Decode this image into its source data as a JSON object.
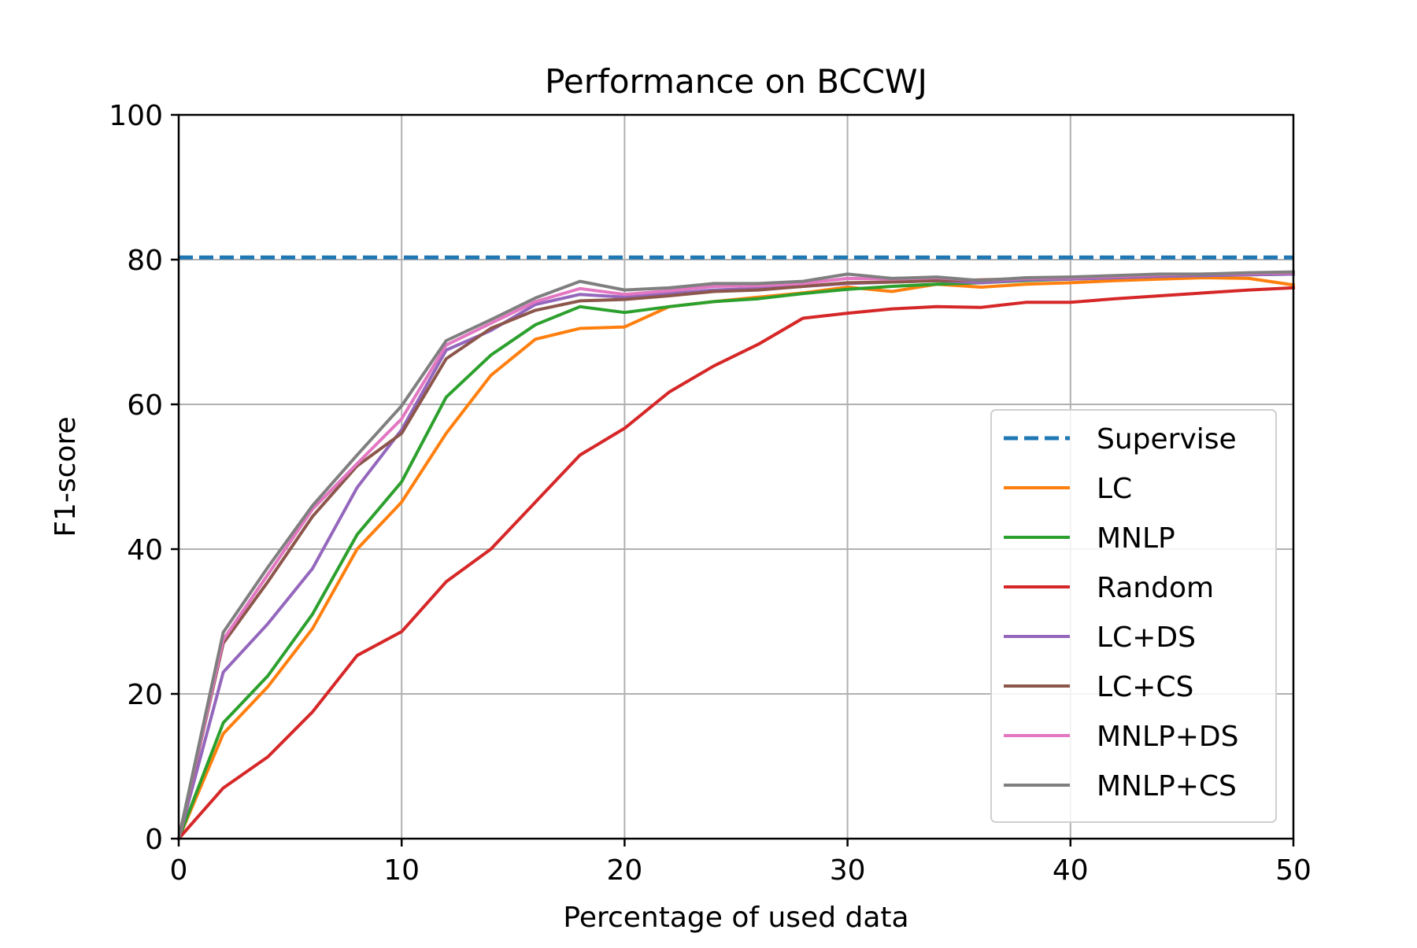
{
  "chart_data": {
    "type": "line",
    "title": "Performance on BCCWJ",
    "xlabel": "Percentage of used data",
    "ylabel": "F1-score",
    "xlim": [
      0,
      50
    ],
    "ylim": [
      0,
      100
    ],
    "xticks": [
      0,
      10,
      20,
      30,
      40,
      50
    ],
    "yticks": [
      0,
      20,
      40,
      60,
      80,
      100
    ],
    "grid": true,
    "legend_position": "center-right / lower-right",
    "x": [
      0,
      2,
      4,
      6,
      8,
      10,
      12,
      14,
      16,
      18,
      20,
      22,
      24,
      26,
      28,
      30,
      32,
      34,
      36,
      38,
      40,
      42,
      44,
      46,
      48,
      50
    ],
    "series": [
      {
        "name": "Supervise",
        "color": "#1f77b4",
        "style": "dashed",
        "constant": 80.3
      },
      {
        "name": "LC",
        "color": "#ff7f0e",
        "style": "solid",
        "values": [
          0,
          14.5,
          21,
          29,
          40,
          46.5,
          56,
          64,
          69,
          70.5,
          70.7,
          73.5,
          74.2,
          74.8,
          75.4,
          76.2,
          75.6,
          76.6,
          76.2,
          76.6,
          76.8,
          77.1,
          77.3,
          77.5,
          77.4,
          76.5
        ]
      },
      {
        "name": "MNLP",
        "color": "#2ca02c",
        "style": "solid",
        "values": [
          0,
          16,
          22.5,
          31,
          42,
          49.3,
          61,
          66.8,
          71,
          73.5,
          72.7,
          73.5,
          74.2,
          74.6,
          75.3,
          75.9,
          76.3,
          76.6,
          76.8,
          77.1,
          77.3,
          77.5,
          77.7,
          77.8,
          77.9,
          78
        ]
      },
      {
        "name": "Random",
        "color": "#d62728",
        "style": "solid",
        "values": [
          0,
          7,
          11.3,
          17.5,
          25.3,
          28.6,
          35.5,
          40,
          46.5,
          53,
          56.7,
          61.7,
          65.3,
          68.3,
          71.9,
          72.6,
          73.2,
          73.5,
          73.4,
          74.1,
          74.1,
          74.6,
          75,
          75.4,
          75.8,
          76.1
        ]
      },
      {
        "name": "LC+DS",
        "color": "#9467bd",
        "style": "solid",
        "values": [
          0,
          23,
          29.7,
          37.3,
          48.5,
          56.5,
          67.5,
          70.2,
          73.8,
          75.2,
          74.8,
          75.3,
          75.8,
          76,
          76.3,
          76.7,
          76.9,
          77.1,
          76.8,
          77.2,
          77.3,
          77.5,
          77.7,
          77.8,
          77.9,
          78
        ]
      },
      {
        "name": "LC+CS",
        "color": "#8c564b",
        "style": "solid",
        "values": [
          0,
          27,
          35.5,
          44.5,
          51.5,
          56,
          66.3,
          70.5,
          73,
          74.3,
          74.5,
          75,
          75.6,
          75.8,
          76.3,
          76.8,
          76.9,
          77.1,
          77.2,
          77.4,
          77.5,
          77.7,
          77.9,
          78,
          78.1,
          78.2
        ]
      },
      {
        "name": "MNLP+DS",
        "color": "#e377c2",
        "style": "solid",
        "values": [
          0,
          27.5,
          36.5,
          45.5,
          51.8,
          58,
          68.2,
          71.2,
          74.2,
          76,
          75.2,
          75.7,
          76.3,
          76.4,
          76.7,
          77.4,
          77.3,
          77.5,
          77.1,
          77.4,
          77.5,
          77.7,
          77.9,
          78,
          78.1,
          78.2
        ]
      },
      {
        "name": "MNLP+CS",
        "color": "#7f7f7f",
        "style": "solid",
        "values": [
          0,
          28.5,
          37.5,
          46,
          53,
          59.8,
          68.8,
          71.7,
          74.7,
          77,
          75.8,
          76.1,
          76.7,
          76.7,
          77,
          78,
          77.4,
          77.6,
          77.1,
          77.5,
          77.6,
          77.8,
          78,
          78,
          78.2,
          78.3
        ]
      }
    ]
  }
}
